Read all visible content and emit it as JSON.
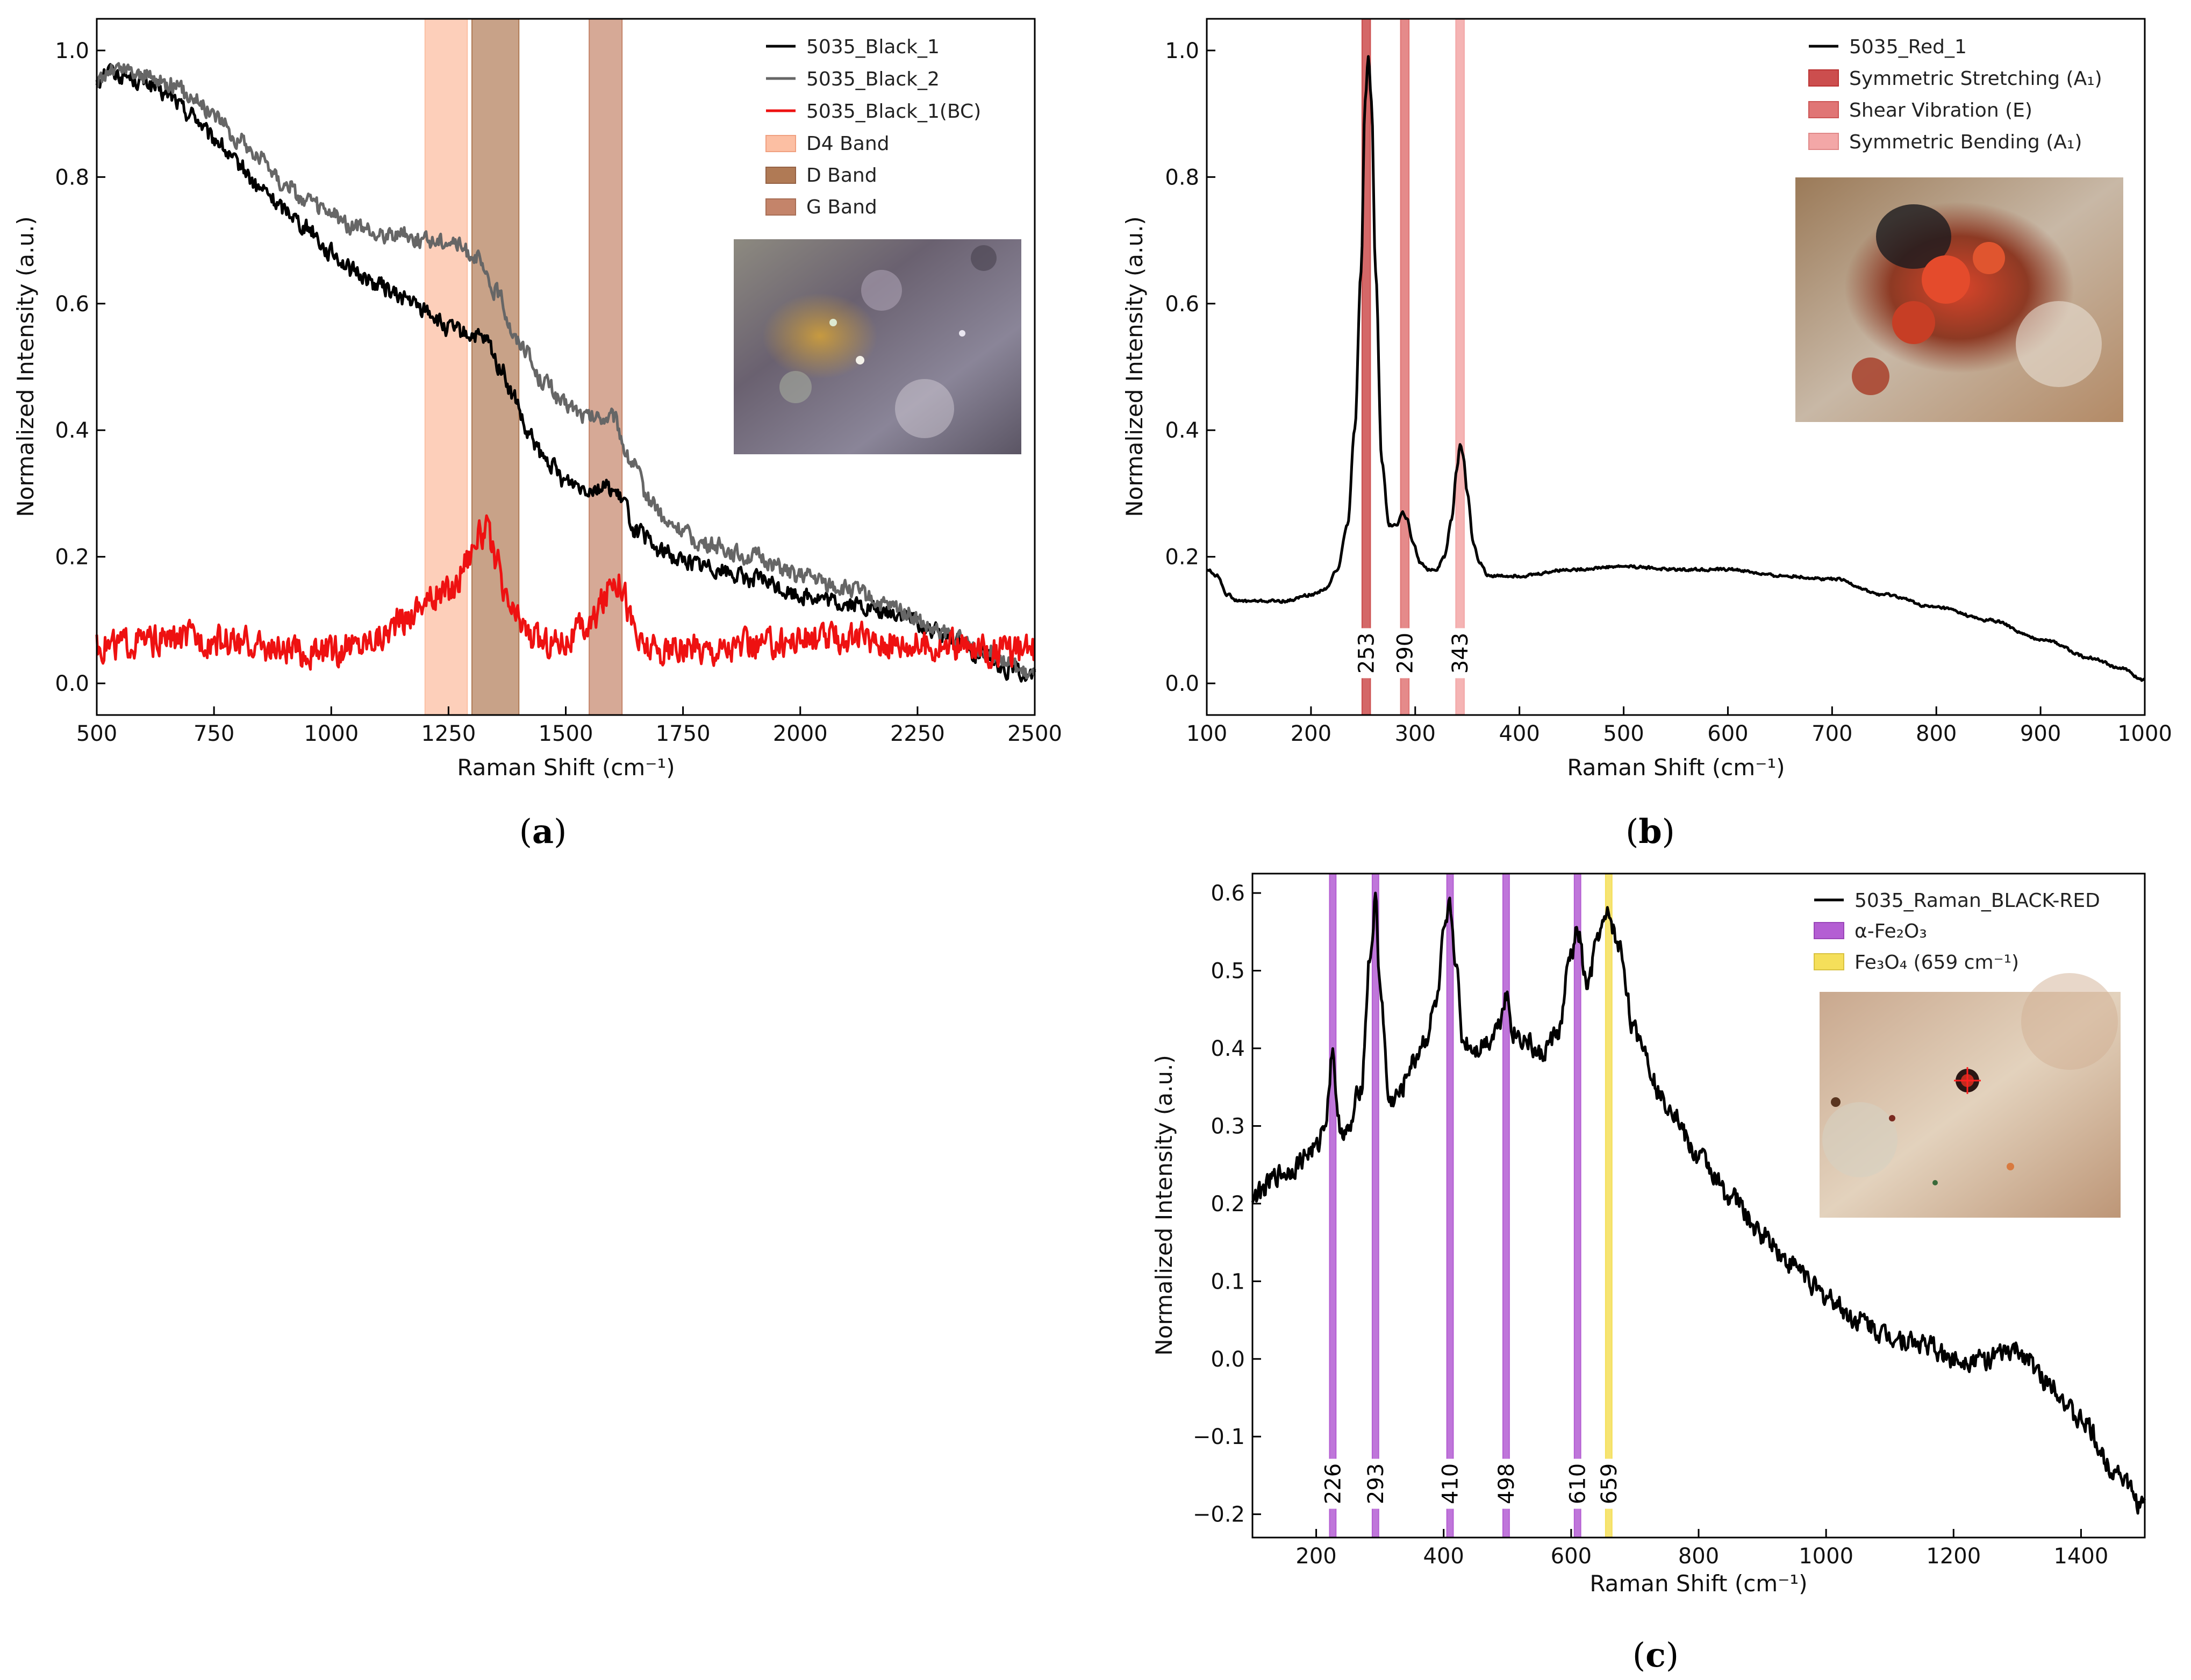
{
  "chart_data": [
    {
      "id": "a",
      "type": "line",
      "panel_label": "a",
      "xlabel": "Raman Shift (cm⁻¹)",
      "ylabel": "Normalized Intensity (a.u.)",
      "xlim": [
        500,
        2500
      ],
      "ylim": [
        -0.05,
        1.05
      ],
      "xticks": [
        500,
        750,
        1000,
        1250,
        1500,
        1750,
        2000,
        2250,
        2500
      ],
      "xtick_labels": [
        "500",
        "750",
        "1000",
        "1250",
        "1500",
        "1750",
        "2000",
        "2250",
        "2500"
      ],
      "yticks": [
        0.0,
        0.2,
        0.4,
        0.6,
        0.8,
        1.0
      ],
      "ytick_labels": [
        "0.0",
        "0.2",
        "0.4",
        "0.6",
        "0.8",
        "1.0"
      ],
      "series": [
        {
          "name": "5035_Black_1",
          "color": "#000000",
          "noise": 0.012,
          "x": [
            500,
            520,
            560,
            600,
            650,
            700,
            750,
            800,
            850,
            900,
            950,
            1000,
            1050,
            1100,
            1150,
            1200,
            1250,
            1300,
            1330,
            1360,
            1390,
            1420,
            1460,
            1500,
            1550,
            1590,
            1620,
            1650,
            1700,
            1750,
            1800,
            1900,
            2000,
            2100,
            2200,
            2300,
            2400,
            2450,
            2500
          ],
          "y": [
            0.95,
            0.97,
            0.96,
            0.95,
            0.93,
            0.9,
            0.86,
            0.82,
            0.78,
            0.75,
            0.72,
            0.68,
            0.65,
            0.63,
            0.61,
            0.59,
            0.56,
            0.55,
            0.54,
            0.5,
            0.45,
            0.39,
            0.35,
            0.32,
            0.31,
            0.31,
            0.29,
            0.24,
            0.21,
            0.195,
            0.185,
            0.165,
            0.14,
            0.125,
            0.11,
            0.08,
            0.04,
            0.02,
            0.01
          ]
        },
        {
          "name": "5035_Black_2",
          "color": "#666666",
          "noise": 0.012,
          "x": [
            500,
            530,
            560,
            600,
            650,
            700,
            750,
            800,
            850,
            900,
            950,
            1000,
            1050,
            1100,
            1150,
            1200,
            1250,
            1300,
            1350,
            1400,
            1450,
            1500,
            1550,
            1600,
            1640,
            1680,
            1720,
            1800,
            1900,
            2000,
            2100,
            2200,
            2300,
            2400,
            2500
          ],
          "y": [
            0.95,
            0.97,
            0.97,
            0.96,
            0.95,
            0.93,
            0.9,
            0.86,
            0.83,
            0.79,
            0.76,
            0.74,
            0.72,
            0.71,
            0.71,
            0.7,
            0.7,
            0.68,
            0.62,
            0.54,
            0.48,
            0.44,
            0.42,
            0.42,
            0.35,
            0.29,
            0.25,
            0.22,
            0.2,
            0.17,
            0.15,
            0.12,
            0.08,
            0.05,
            0.01
          ]
        },
        {
          "name": "5035_Black_1(BC)",
          "color": "#ee1111",
          "noise": 0.022,
          "x": [
            500,
            600,
            700,
            800,
            900,
            950,
            1000,
            1050,
            1100,
            1150,
            1200,
            1230,
            1260,
            1290,
            1310,
            1330,
            1350,
            1370,
            1400,
            1430,
            1460,
            1500,
            1550,
            1580,
            1600,
            1620,
            1640,
            1660,
            1700,
            1800,
            1900,
            2000,
            2100,
            2200,
            2300,
            2400,
            2500
          ],
          "y": [
            0.06,
            0.065,
            0.07,
            0.065,
            0.05,
            0.045,
            0.05,
            0.06,
            0.075,
            0.1,
            0.13,
            0.14,
            0.15,
            0.2,
            0.23,
            0.24,
            0.2,
            0.13,
            0.1,
            0.07,
            0.065,
            0.07,
            0.09,
            0.13,
            0.17,
            0.16,
            0.1,
            0.06,
            0.05,
            0.055,
            0.06,
            0.07,
            0.07,
            0.065,
            0.06,
            0.05,
            0.05
          ]
        }
      ],
      "bands": [
        {
          "name": "D4 Band",
          "x0": 1200,
          "x1": 1290,
          "color": "#fcbfa3"
        },
        {
          "name": "D Band",
          "x0": 1300,
          "x1": 1400,
          "color": "#b07a55"
        },
        {
          "name": "G Band",
          "x0": 1550,
          "x1": 1620,
          "color": "#c4846a"
        }
      ],
      "legend_position": "top-right"
    },
    {
      "id": "b",
      "type": "line",
      "panel_label": "b",
      "xlabel": "Raman Shift (cm⁻¹)",
      "ylabel": "Normalized Intensity (a.u.)",
      "xlim": [
        100,
        1000
      ],
      "ylim": [
        -0.05,
        1.05
      ],
      "xticks": [
        100,
        200,
        300,
        400,
        500,
        600,
        700,
        800,
        900,
        1000
      ],
      "xtick_labels": [
        "100",
        "200",
        "300",
        "400",
        "500",
        "600",
        "700",
        "800",
        "900",
        "1000"
      ],
      "yticks": [
        0.0,
        0.2,
        0.4,
        0.6,
        0.8,
        1.0
      ],
      "ytick_labels": [
        "0.0",
        "0.2",
        "0.4",
        "0.6",
        "0.8",
        "1.0"
      ],
      "series": [
        {
          "name": "5035_Red_1",
          "color": "#000000",
          "noise": 0.002,
          "x": [
            100,
            110,
            120,
            130,
            150,
            175,
            200,
            215,
            225,
            235,
            242,
            248,
            252,
            255,
            258,
            262,
            268,
            275,
            282,
            288,
            292,
            298,
            305,
            312,
            320,
            328,
            335,
            340,
            343,
            346,
            350,
            356,
            362,
            370,
            380,
            400,
            450,
            500,
            550,
            600,
            650,
            700,
            750,
            800,
            850,
            900,
            950,
            975,
            1000
          ],
          "y": [
            0.18,
            0.17,
            0.14,
            0.13,
            0.13,
            0.13,
            0.14,
            0.15,
            0.18,
            0.25,
            0.4,
            0.65,
            0.92,
            0.99,
            0.92,
            0.65,
            0.35,
            0.25,
            0.25,
            0.27,
            0.26,
            0.22,
            0.19,
            0.18,
            0.18,
            0.2,
            0.26,
            0.34,
            0.38,
            0.36,
            0.3,
            0.22,
            0.19,
            0.17,
            0.17,
            0.17,
            0.18,
            0.185,
            0.18,
            0.18,
            0.17,
            0.165,
            0.14,
            0.12,
            0.1,
            0.07,
            0.04,
            0.025,
            0.005
          ]
        }
      ],
      "bands": [
        {
          "name": "Symmetric Stretching (A₁)",
          "x0": 249,
          "x1": 257,
          "color": "#cc4e4e",
          "label": "253"
        },
        {
          "name": "Shear Vibration (E)",
          "x0": 286,
          "x1": 294,
          "color": "#e07575",
          "label": "290"
        },
        {
          "name": "Symmetric Bending (A₁)",
          "x0": 339,
          "x1": 347,
          "color": "#f3a7a7",
          "label": "343"
        }
      ],
      "legend_position": "top-right"
    },
    {
      "id": "c",
      "type": "line",
      "panel_label": "c",
      "xlabel": "Raman Shift (cm⁻¹)",
      "ylabel": "Normalized Intensity (a.u.)",
      "xlim": [
        100,
        1500
      ],
      "ylim": [
        -0.23,
        0.625
      ],
      "xticks": [
        200,
        400,
        600,
        800,
        1000,
        1200,
        1400
      ],
      "xtick_labels": [
        "200",
        "400",
        "600",
        "800",
        "1000",
        "1200",
        "1400"
      ],
      "yticks": [
        -0.2,
        -0.1,
        0.0,
        0.1,
        0.2,
        0.3,
        0.4,
        0.5,
        0.6
      ],
      "ytick_labels": [
        "−0.2",
        "−0.1",
        "0.0",
        "0.1",
        "0.2",
        "0.3",
        "0.4",
        "0.5",
        "0.6"
      ],
      "series": [
        {
          "name": "5035_Raman_BLACK-RED",
          "color": "#000000",
          "noise": 0.012,
          "x": [
            100,
            150,
            200,
            215,
            226,
            235,
            250,
            270,
            285,
            293,
            300,
            315,
            330,
            350,
            370,
            390,
            400,
            410,
            418,
            430,
            450,
            470,
            485,
            498,
            510,
            530,
            550,
            580,
            600,
            610,
            625,
            645,
            659,
            675,
            700,
            750,
            800,
            850,
            900,
            950,
            1000,
            1050,
            1100,
            1150,
            1200,
            1250,
            1300,
            1350,
            1400,
            1450,
            1500
          ],
          "y": [
            0.21,
            0.24,
            0.27,
            0.31,
            0.4,
            0.3,
            0.29,
            0.35,
            0.52,
            0.59,
            0.48,
            0.33,
            0.34,
            0.38,
            0.41,
            0.46,
            0.54,
            0.58,
            0.52,
            0.41,
            0.4,
            0.41,
            0.43,
            0.47,
            0.42,
            0.41,
            0.39,
            0.42,
            0.52,
            0.55,
            0.48,
            0.55,
            0.57,
            0.53,
            0.42,
            0.33,
            0.26,
            0.21,
            0.16,
            0.12,
            0.08,
            0.05,
            0.03,
            0.02,
            0.0,
            0.0,
            0.01,
            -0.03,
            -0.08,
            -0.14,
            -0.19
          ]
        }
      ],
      "bands": [
        {
          "name": "α-Fe₂O₃",
          "x0": 221,
          "x1": 231,
          "color": "#b45ed3",
          "label": "226",
          "legend": true
        },
        {
          "name": "α-Fe₂O₃",
          "x0": 288,
          "x1": 298,
          "color": "#b45ed3",
          "label": "293",
          "legend": false
        },
        {
          "name": "α-Fe₂O₃",
          "x0": 405,
          "x1": 415,
          "color": "#b45ed3",
          "label": "410",
          "legend": false
        },
        {
          "name": "α-Fe₂O₃",
          "x0": 493,
          "x1": 503,
          "color": "#b45ed3",
          "label": "498",
          "legend": false
        },
        {
          "name": "α-Fe₂O₃",
          "x0": 605,
          "x1": 615,
          "color": "#b45ed3",
          "label": "610",
          "legend": false
        },
        {
          "name": "Fe₃O₄ (659 cm⁻¹)",
          "x0": 654,
          "x1": 664,
          "color": "#f5df5a",
          "label": "659",
          "legend": true
        }
      ],
      "legend_position": "top-right"
    }
  ]
}
